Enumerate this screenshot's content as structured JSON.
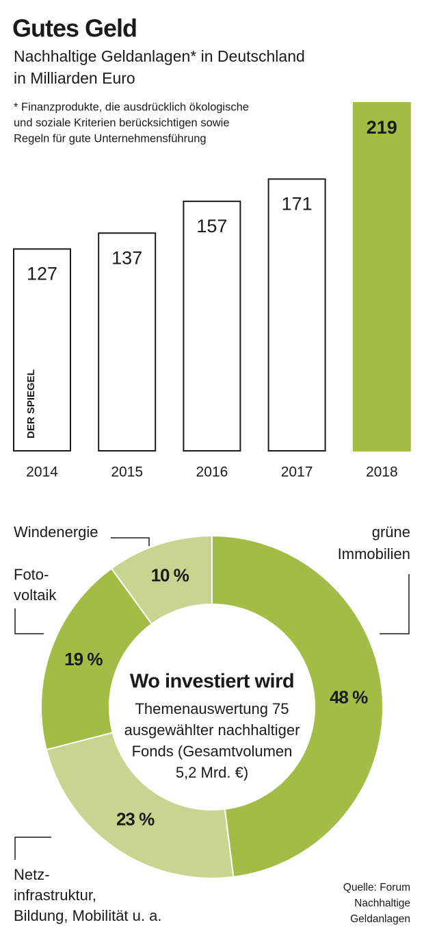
{
  "chart_data": [
    {
      "type": "bar",
      "title": "Gutes Geld",
      "subtitle": [
        "Nachhaltige Geldanlagen* in Deutschland",
        "in Milliarden Euro"
      ],
      "note": [
        "* Finanzprodukte, die ausdrücklich ökologische",
        "und soziale Kriterien berücksichtigen sowie",
        "Regeln für gute Unternehmensführung"
      ],
      "watermark": "DER SPIEGEL",
      "categories": [
        "2014",
        "2015",
        "2016",
        "2017",
        "2018"
      ],
      "values": [
        127,
        137,
        157,
        171,
        219
      ],
      "colors": [
        "#ffffff",
        "#ffffff",
        "#ffffff",
        "#ffffff",
        "#a4bb45"
      ]
    },
    {
      "type": "donut",
      "title": "Wo investiert wird",
      "subtitle": [
        "Themenauswertung 75",
        "ausgewählter nachhaltiger",
        "Fonds (Gesamtvolumen",
        "5,2 Mrd. €)"
      ],
      "categories": [
        [
          "grüne",
          "Immobilien"
        ],
        [
          "Netz-",
          "infrastruktur,",
          "Bildung, Mobilität u. a."
        ],
        [
          "Foto-",
          "voltaik"
        ],
        [
          "Windenergie"
        ]
      ],
      "values": [
        48,
        23,
        19,
        10
      ],
      "value_labels": [
        "48 %",
        "23 %",
        "19 %",
        "10 %"
      ],
      "colors": [
        "#a4bb45",
        "#c8d48f",
        "#a4bb45",
        "#c8d48f"
      ],
      "source": [
        "Quelle: Forum",
        "Nachhaltige",
        "Geldanlagen"
      ]
    }
  ]
}
